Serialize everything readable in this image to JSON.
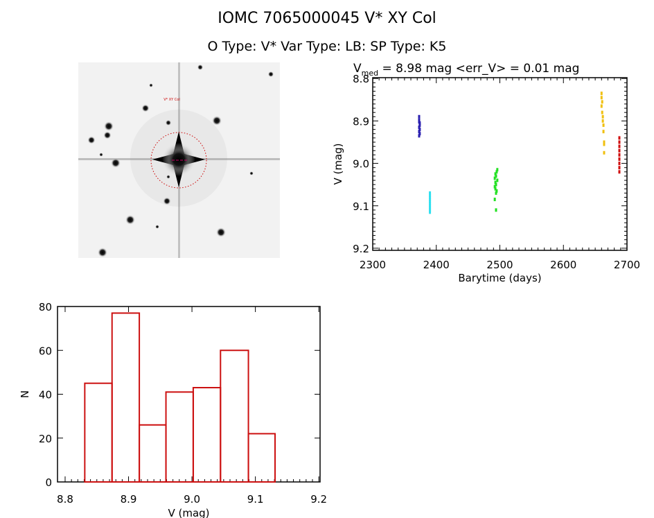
{
  "header": {
    "title": "IOMC 7065000045    V* XY Col",
    "subtitle": "O Type: V*  Var Type: LB:  SP Type: K5"
  },
  "image_panel": {
    "label": "V* XY Col"
  },
  "chart_data": [
    {
      "type": "scatter",
      "title": {
        "prefix": "V",
        "sub": "med",
        "rest": " = 8.98 mag <err_V> = 0.01 mag"
      },
      "xlabel": "Barytime (days)",
      "ylabel": "V (mag)",
      "xlim": [
        2300,
        2700
      ],
      "ylim": [
        8.798,
        9.205
      ],
      "y_inverted": true,
      "xticks": [
        "2300",
        "2400",
        "2500",
        "2600",
        "2700"
      ],
      "yticks": [
        "8.8",
        "8.9",
        "9.0",
        "9.1",
        "9.2"
      ],
      "series": [
        {
          "name": "blue",
          "color": "#2a1fb0",
          "x": [
            2373,
            2373,
            2373,
            2374,
            2374,
            2373,
            2374,
            2373,
            2374,
            2373
          ],
          "y": [
            8.89,
            8.898,
            8.902,
            8.905,
            8.91,
            8.915,
            8.92,
            8.925,
            8.93,
            8.935
          ]
        },
        {
          "name": "cyan",
          "color": "#30e0f0",
          "x": [
            2390,
            2390,
            2390,
            2390,
            2390,
            2390,
            2390,
            2390,
            2390,
            2390
          ],
          "y": [
            9.07,
            9.075,
            9.08,
            9.085,
            9.09,
            9.095,
            9.1,
            9.105,
            9.11,
            9.115
          ]
        },
        {
          "name": "green",
          "color": "#22e022",
          "x": [
            2496,
            2495,
            2493,
            2494,
            2492,
            2496,
            2493,
            2494,
            2492,
            2493,
            2495,
            2494,
            2492,
            2494
          ],
          "y": [
            9.015,
            9.02,
            9.025,
            9.03,
            9.035,
            9.04,
            9.045,
            9.05,
            9.055,
            9.06,
            9.065,
            9.07,
            9.085,
            9.11
          ]
        },
        {
          "name": "yellow",
          "color": "#f0c010",
          "x": [
            2660,
            2660,
            2661,
            2660,
            2661,
            2662,
            2662,
            2663,
            2663,
            2664,
            2664,
            2664
          ],
          "y": [
            8.835,
            8.845,
            8.855,
            8.865,
            8.88,
            8.89,
            8.9,
            8.91,
            8.925,
            8.95,
            8.955,
            8.975
          ]
        },
        {
          "name": "red",
          "color": "#d01010",
          "x": [
            2688,
            2688,
            2688,
            2688,
            2688,
            2688,
            2688,
            2688,
            2688
          ],
          "y": [
            8.94,
            8.95,
            8.96,
            8.97,
            8.98,
            8.99,
            9.0,
            9.01,
            9.02
          ]
        }
      ]
    },
    {
      "type": "bar",
      "subtype": "histogram",
      "xlabel": "V (mag)",
      "ylabel": "N",
      "xlim": [
        8.788,
        9.202
      ],
      "ylim": [
        0,
        80
      ],
      "xticks": [
        "8.8",
        "8.9",
        "9.0",
        "9.1",
        "9.2"
      ],
      "yticks": [
        "0",
        "20",
        "40",
        "60",
        "80"
      ],
      "bin_edges": [
        8.831,
        8.874,
        8.917,
        8.959,
        9.002,
        9.045,
        9.089,
        9.131
      ],
      "values": [
        45,
        77,
        26,
        41,
        43,
        60,
        22
      ],
      "color": "#cc1010"
    }
  ]
}
